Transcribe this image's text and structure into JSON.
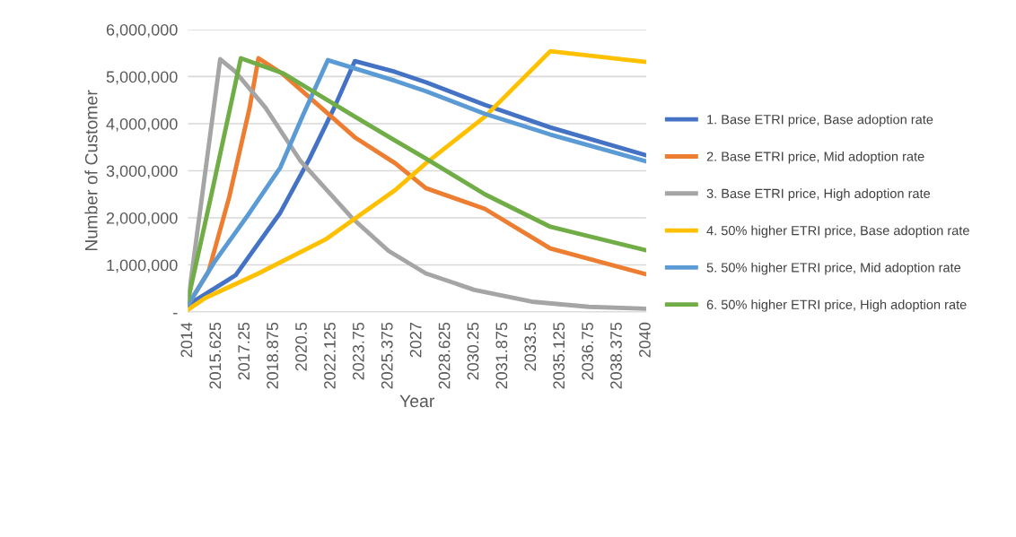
{
  "chart_data": {
    "type": "line",
    "xlabel": "Year",
    "ylabel": "Number of Customer",
    "xlim": [
      2014,
      2040
    ],
    "xticks": [
      2014,
      2015.625,
      2017.25,
      2018.875,
      2020.5,
      2022.125,
      2023.75,
      2025.375,
      2027,
      2028.625,
      2030.25,
      2031.875,
      2033.5,
      2035.125,
      2036.75,
      2038.375,
      2040
    ],
    "ylim": [
      0,
      6000000
    ],
    "yticks": [
      {
        "value": 0,
        "label": "-"
      },
      {
        "value": 1000000,
        "label": "1,000,000"
      },
      {
        "value": 2000000,
        "label": "2,000,000"
      },
      {
        "value": 3000000,
        "label": "3,000,000"
      },
      {
        "value": 4000000,
        "label": "4,000,000"
      },
      {
        "value": 5000000,
        "label": "5,000,000"
      },
      {
        "value": 6000000,
        "label": "6,000,000"
      }
    ],
    "grid": "y",
    "legend": "right",
    "marker": "none",
    "line_style": "solid",
    "series": [
      {
        "name": "1. Base ETRI price, Base adoption rate",
        "color": "#4472c4",
        "x": [
          2014,
          2016.7,
          2019.24,
          2020.9,
          2022.3,
          2023.47,
          2025.76,
          2027.5,
          2030.85,
          2034.56,
          2040
        ],
        "values": [
          150000,
          780000,
          2110000,
          3260000,
          4340000,
          5330000,
          5100000,
          4880000,
          4400000,
          3920000,
          3330000
        ]
      },
      {
        "name": "2. Base ETRI price, Mid adoption rate",
        "color": "#ed7d31",
        "x": [
          2014,
          2015.17,
          2016.34,
          2017.5,
          2018.0,
          2019.4,
          2023.47,
          2025.76,
          2027.5,
          2030.85,
          2034.56,
          2040
        ],
        "values": [
          150000,
          860000,
          2440000,
          4340000,
          5390000,
          5050000,
          3710000,
          3160000,
          2630000,
          2190000,
          1350000,
          800000
        ]
      },
      {
        "name": "3. Base ETRI price, High adoption rate",
        "color": "#a5a5a5",
        "x": [
          2014,
          2015.83,
          2016.7,
          2018.4,
          2020.4,
          2023.3,
          2025.375,
          2027.5,
          2030.25,
          2033.5,
          2036.75,
          2040
        ],
        "values": [
          200000,
          5370000,
          5100000,
          4340000,
          3200000,
          2000000,
          1300000,
          820000,
          470000,
          220000,
          110000,
          70000
        ]
      },
      {
        "name": "4. 50% higher ETRI price, Base adoption rate",
        "color": "#ffc000",
        "x": [
          2014,
          2015.0,
          2018.0,
          2021.8,
          2025.76,
          2027.5,
          2030.85,
          2034.56,
          2040
        ],
        "values": [
          50000,
          300000,
          820000,
          1540000,
          2590000,
          3160000,
          4150000,
          5540000,
          5310000
        ]
      },
      {
        "name": "5. 50% higher ETRI price, Mid adoption rate",
        "color": "#5b9bd5",
        "x": [
          2014,
          2015.48,
          2017.5,
          2019.24,
          2020.56,
          2021.94,
          2025.76,
          2027.5,
          2030.85,
          2034.56,
          2040
        ],
        "values": [
          150000,
          1050000,
          2110000,
          3070000,
          4210000,
          5350000,
          4910000,
          4690000,
          4210000,
          3770000,
          3200000
        ]
      },
      {
        "name": "6. 50% higher ETRI price, High adoption rate",
        "color": "#70ad47",
        "x": [
          2014,
          2015.3,
          2017.0,
          2019.4,
          2023.47,
          2025.76,
          2027.5,
          2030.85,
          2034.56,
          2040
        ],
        "values": [
          250000,
          2440000,
          5390000,
          5070000,
          4150000,
          3640000,
          3260000,
          2500000,
          1810000,
          1310000
        ]
      }
    ]
  }
}
